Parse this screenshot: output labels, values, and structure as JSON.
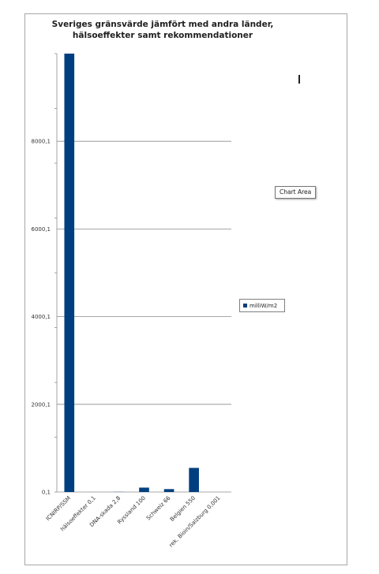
{
  "chart_data": {
    "type": "bar",
    "title": "Sveriges gränsvärde jämfört med andra länder,\nhälsoeffekter samt rekommendationer",
    "categories": [
      "ICNIRP/SSM",
      "hälsoeffekter 0,1",
      "DNA-skada 2,8",
      "Ryssland 100",
      "Schweiz 66",
      "Belgien 550",
      "rek. Bioin/Salzburg 0,001"
    ],
    "series": [
      {
        "name": "milliW/m2",
        "values": [
          10000,
          0.1,
          2.8,
          100,
          66,
          550,
          0.001
        ],
        "color": "#003f7f"
      }
    ],
    "y_ticks": [
      "0,1",
      "2000,1",
      "4000,1",
      "6000,1",
      "8000,1"
    ],
    "ylim": [
      0,
      10000
    ],
    "grid": true,
    "legend_position": "right"
  },
  "tooltip": {
    "text": "Chart Area"
  }
}
